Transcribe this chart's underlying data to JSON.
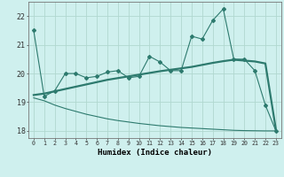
{
  "xlabel": "Humidex (Indice chaleur)",
  "background_color": "#cff0ee",
  "grid_color": "#b0d8d0",
  "line_color": "#2d7a6e",
  "xlim": [
    -0.5,
    23.5
  ],
  "ylim": [
    17.75,
    22.5
  ],
  "yticks": [
    18,
    19,
    20,
    21,
    22
  ],
  "xticks": [
    0,
    1,
    2,
    3,
    4,
    5,
    6,
    7,
    8,
    9,
    10,
    11,
    12,
    13,
    14,
    15,
    16,
    17,
    18,
    19,
    20,
    21,
    22,
    23
  ],
  "curve1_x": [
    0,
    1,
    2,
    3,
    4,
    5,
    6,
    7,
    8,
    9,
    10,
    11,
    12,
    13,
    14,
    15,
    16,
    17,
    18,
    19,
    20,
    21,
    22,
    23
  ],
  "curve1_y": [
    21.5,
    19.2,
    19.4,
    20.0,
    20.0,
    19.85,
    19.9,
    20.05,
    20.1,
    19.85,
    19.9,
    20.6,
    20.4,
    20.1,
    20.1,
    21.3,
    21.2,
    21.85,
    22.25,
    20.5,
    20.5,
    20.1,
    18.9,
    18.0
  ],
  "curve2_x": [
    0,
    1,
    2,
    3,
    4,
    5,
    6,
    7,
    8,
    9,
    10,
    11,
    12,
    13,
    14,
    15,
    16,
    17,
    18,
    19,
    20,
    21,
    22,
    23
  ],
  "curve2_y": [
    19.25,
    19.3,
    19.38,
    19.46,
    19.54,
    19.62,
    19.7,
    19.78,
    19.84,
    19.9,
    19.96,
    20.02,
    20.08,
    20.13,
    20.18,
    20.23,
    20.3,
    20.37,
    20.43,
    20.48,
    20.45,
    20.42,
    20.35,
    18.05
  ],
  "curve3_x": [
    0,
    1,
    2,
    3,
    4,
    5,
    6,
    7,
    8,
    9,
    10,
    11,
    12,
    13,
    14,
    15,
    16,
    17,
    18,
    19,
    20,
    21,
    22,
    23
  ],
  "curve3_y": [
    19.15,
    19.05,
    18.9,
    18.78,
    18.68,
    18.58,
    18.5,
    18.42,
    18.36,
    18.31,
    18.26,
    18.22,
    18.18,
    18.15,
    18.12,
    18.1,
    18.08,
    18.06,
    18.04,
    18.02,
    18.01,
    18.005,
    18.0,
    18.0
  ]
}
